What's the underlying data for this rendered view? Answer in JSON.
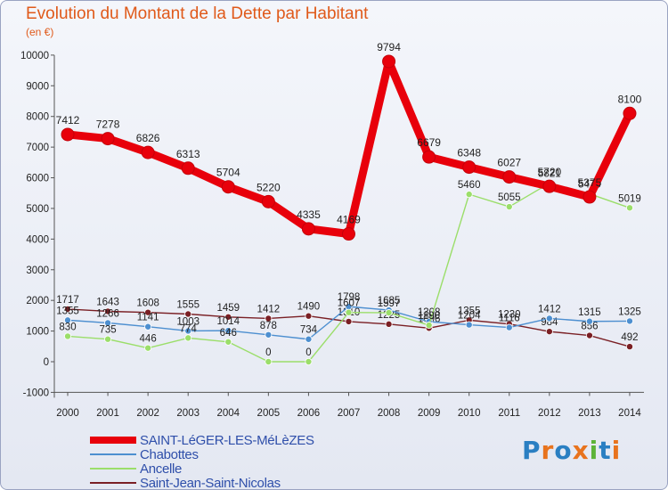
{
  "chart_data": {
    "type": "line",
    "title": "Evolution du Montant de la Dette par Habitant",
    "subtitle": "(en €)",
    "x": [
      "2000",
      "2001",
      "2002",
      "2003",
      "2004",
      "2005",
      "2006",
      "2007",
      "2008",
      "2009",
      "2010",
      "2011",
      "2012",
      "2013",
      "2014"
    ],
    "ylim": [
      -1000,
      10000
    ],
    "yticks": [
      -1000,
      0,
      1000,
      2000,
      3000,
      4000,
      5000,
      6000,
      7000,
      8000,
      9000,
      10000
    ],
    "grid": false,
    "legend_position": "bottom-left",
    "series": [
      {
        "name": "SAINT-LéGER-LES-MéLèZES",
        "color": "#e8000b",
        "values": [
          7412,
          7278,
          6826,
          6313,
          5704,
          5220,
          4335,
          4169,
          9794,
          6679,
          6348,
          6027,
          5720,
          5375,
          8100
        ]
      },
      {
        "name": "Chabottes",
        "color": "#4d8fd0",
        "values": [
          1355,
          1266,
          1141,
          1003,
          1014,
          878,
          734,
          1798,
          1685,
          1308,
          1204,
          1116,
          1412,
          1315,
          1325
        ]
      },
      {
        "name": "Ancelle",
        "color": "#9bde6a",
        "values": [
          830,
          735,
          446,
          774,
          646,
          0,
          0,
          1607,
          1597,
          1190,
          5460,
          5055,
          5821,
          5476,
          5019
        ]
      },
      {
        "name": "Saint-Jean-Saint-Nicolas",
        "color": "#7a1f24",
        "values": [
          1717,
          1643,
          1608,
          1555,
          1459,
          1412,
          1490,
          1310,
          1225,
          1096,
          1355,
          1230,
          984,
          856,
          492
        ]
      }
    ]
  },
  "brand": {
    "logo_text": "Proxiti"
  }
}
